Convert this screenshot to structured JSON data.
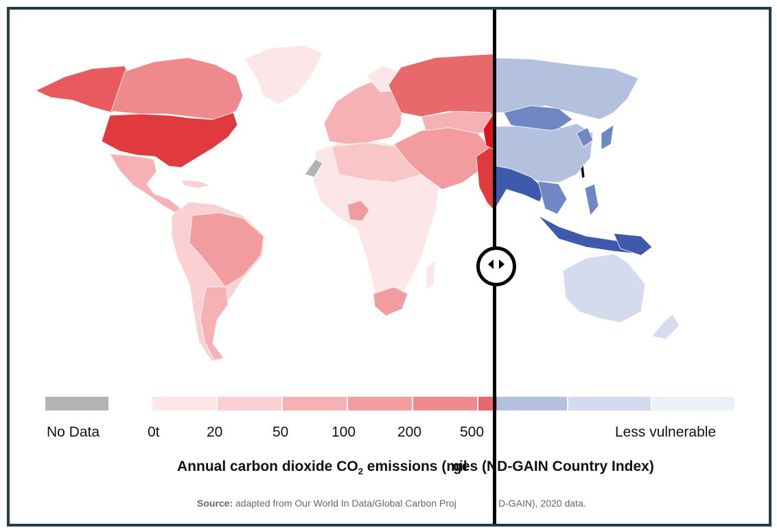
{
  "legend": {
    "no_data": "No Data",
    "emission_ticks": [
      "0t",
      "20",
      "50",
      "100",
      "200",
      "500"
    ],
    "right_label": "Less vulnerable",
    "colors": {
      "no_data": "#b3b3b3",
      "red": [
        "#fde6e7",
        "#fad0d2",
        "#f6b1b4",
        "#f29c9f",
        "#ee8a8d",
        "#e8686b"
      ],
      "blue": [
        "#b4c1de",
        "#d3dbed",
        "#eef0f7"
      ]
    }
  },
  "caption": {
    "left": "Annual carbon dioxide CO",
    "subscript": "2",
    "left_tail": " emissions (mil",
    "right": "ges (ND-GAIN Country Index)"
  },
  "source": {
    "bold": "Source:",
    "left_text": " adapted from Our World In Data/Global Carbon Proj",
    "right_text": "D-GAIN), 2020 data."
  },
  "map": {
    "left_theme": "co2-emissions",
    "right_theme": "climate-vulnerability",
    "land_colors": {
      "north_america": "#e8686b",
      "usa": "#e03a3e",
      "alaska": "#e95a5e",
      "canada": "#ee8a8d",
      "greenland": "#fde6e7",
      "mexico": "#f6b1b4",
      "south_america": "#fad0d2",
      "brazil": "#f29c9f",
      "argentina": "#f6b1b4",
      "africa": "#fde6e7",
      "south_africa": "#f29c9f",
      "europe": "#f6b1b4",
      "russia": "#e8686b",
      "middle_east": "#f29c9f",
      "india": "#e03a3e",
      "china_edge": "#e0141c",
      "asia_blue_light": "#b4c1de",
      "asia_blue_mid": "#6f87c5",
      "asia_blue_dark": "#3f59ad",
      "australia": "#d3dbed",
      "western_sahara": "#b3b3b3"
    }
  }
}
